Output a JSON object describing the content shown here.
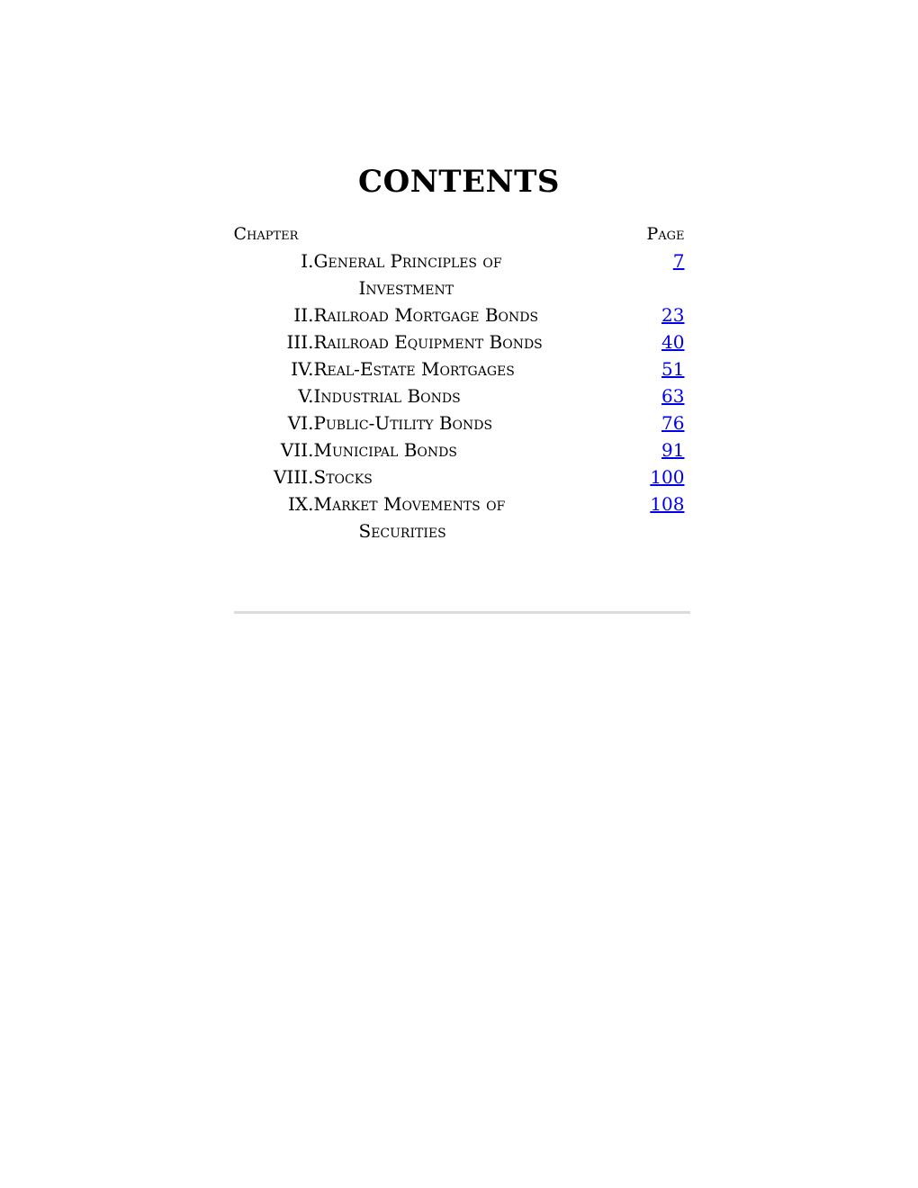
{
  "page_title": "CONTENTS",
  "headers": {
    "chapter": "Chapter",
    "page": "Page"
  },
  "toc_rows": [
    {
      "numeral": "I.",
      "title_lines": [
        "General Principles of",
        "Investment"
      ],
      "page": "7"
    },
    {
      "numeral": "II.",
      "title_lines": [
        "Railroad Mortgage Bonds"
      ],
      "page": "23"
    },
    {
      "numeral": "III.",
      "title_lines": [
        "Railroad Equipment Bonds"
      ],
      "page": "40"
    },
    {
      "numeral": "IV.",
      "title_lines": [
        "Real-Estate Mortgages"
      ],
      "page": "51"
    },
    {
      "numeral": "V.",
      "title_lines": [
        "Industrial Bonds"
      ],
      "page": "63"
    },
    {
      "numeral": "VI.",
      "title_lines": [
        "Public-Utility Bonds"
      ],
      "page": "76"
    },
    {
      "numeral": "VII.",
      "title_lines": [
        "Municipal Bonds"
      ],
      "page": "91"
    },
    {
      "numeral": "VIII.",
      "title_lines": [
        "Stocks"
      ],
      "page": "100"
    },
    {
      "numeral": "IX.",
      "title_lines": [
        "Market Movements of",
        "Securities"
      ],
      "page": "108"
    }
  ],
  "colors": {
    "link-blue": "#0000EE",
    "divider-gray": "#dcdcdc",
    "text": "#000000"
  }
}
